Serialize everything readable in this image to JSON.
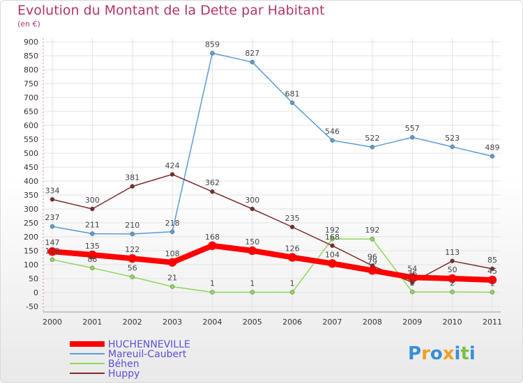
{
  "header": {
    "title": "Evolution du Montant de la Dette par Habitant",
    "subtitle": "(en €)"
  },
  "brand": {
    "logo_text": "Proxiti"
  },
  "chart_data": {
    "type": "line",
    "title": "Evolution du Montant de la Dette par Habitant",
    "subtitle": "(en €)",
    "xlabel": "",
    "ylabel": "",
    "x": [
      "2000",
      "2001",
      "2002",
      "2003",
      "2004",
      "2005",
      "2006",
      "2007",
      "2008",
      "2009",
      "2010",
      "2011"
    ],
    "ylim": [
      -50,
      900
    ],
    "yticks": [
      -50,
      0,
      50,
      100,
      150,
      200,
      250,
      300,
      350,
      400,
      450,
      500,
      550,
      600,
      650,
      700,
      750,
      800,
      850,
      900
    ],
    "grid": true,
    "legend_position": "bottom-left",
    "series": [
      {
        "name": "HUCHENNEVILLE",
        "color": "#ff0000",
        "values": [
          147,
          135,
          122,
          108,
          168,
          150,
          126,
          104,
          79,
          54,
          50,
          45
        ]
      },
      {
        "name": "Mareuil-Caubert",
        "color": "#5b9bd5",
        "values": [
          237,
          211,
          210,
          218,
          859,
          827,
          681,
          546,
          522,
          557,
          523,
          489
        ]
      },
      {
        "name": "Béhen",
        "color": "#8ed65d",
        "values": [
          118,
          88,
          56,
          21,
          1,
          1,
          1,
          192,
          192,
          2,
          2,
          1
        ]
      },
      {
        "name": "Huppy",
        "color": "#7b2a2a",
        "values": [
          334,
          300,
          381,
          424,
          362,
          300,
          235,
          168,
          96,
          36,
          113,
          85
        ]
      }
    ],
    "value_labels": {
      "HUCHENNEVILLE": [
        "147",
        "135",
        "122",
        "108",
        "168",
        "150",
        "126",
        "104",
        "79",
        "54",
        "50",
        "45"
      ],
      "Mareuil-Caubert": [
        "237",
        "211",
        "210",
        "218",
        "859",
        "827",
        "681",
        "546",
        "522",
        "557",
        "523",
        "489"
      ],
      "Béhen": [
        "118",
        "88",
        "56",
        "21",
        "1",
        "1",
        "1",
        "192",
        "192",
        "2",
        "2",
        "1"
      ],
      "Huppy": [
        "334",
        "300",
        "381",
        "424",
        "362",
        "300",
        "235",
        "168",
        "96",
        "36",
        "113",
        "85"
      ]
    }
  }
}
